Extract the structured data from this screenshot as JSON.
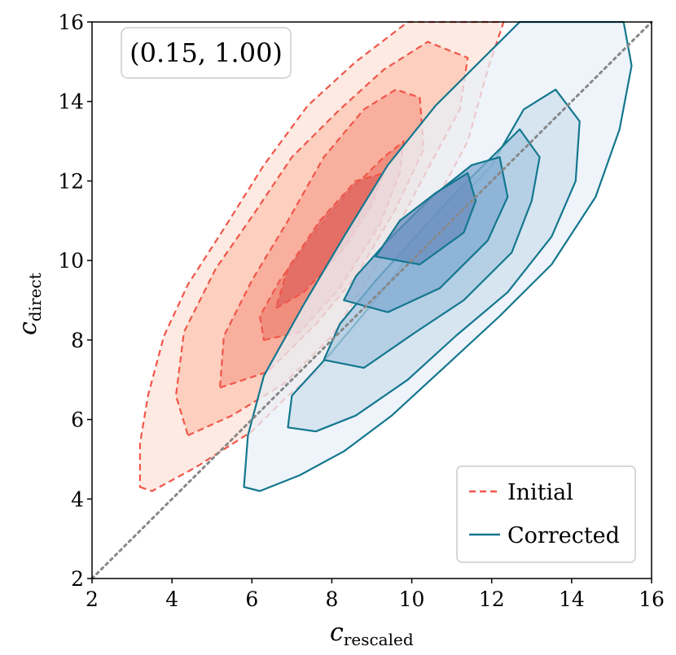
{
  "chart_data": {
    "type": "contour",
    "xlabel_main": "c",
    "xlabel_sub": "rescaled",
    "ylabel_main": "c",
    "ylabel_sub": "direct",
    "xlim": [
      2,
      16
    ],
    "ylim": [
      2,
      16
    ],
    "xticks": [
      2,
      4,
      6,
      8,
      10,
      12,
      14,
      16
    ],
    "yticks": [
      2,
      4,
      6,
      8,
      10,
      12,
      14,
      16
    ],
    "annotation": "(0.15, 1.00)",
    "reference_line": {
      "from": [
        2,
        2
      ],
      "to": [
        16,
        16
      ],
      "style": "dotted",
      "color": "#888888"
    },
    "series": [
      {
        "name": "Initial",
        "style": "dashed",
        "line_color": "#f0564a",
        "fill_colors": [
          "#fde6dd",
          "#fbcab8",
          "#f8a996",
          "#f08a7a",
          "#e06a62"
        ],
        "levels": [
          [
            [
              3.2,
              4.3
            ],
            [
              3.5,
              4.2
            ],
            [
              4.6,
              4.8
            ],
            [
              6.0,
              5.7
            ],
            [
              6.9,
              6.6
            ],
            [
              8.1,
              7.6
            ],
            [
              9.4,
              9.3
            ],
            [
              10.5,
              11.3
            ],
            [
              11.4,
              13.0
            ],
            [
              11.9,
              14.8
            ],
            [
              12.3,
              16.0
            ],
            [
              9.9,
              16.0
            ],
            [
              8.6,
              15.0
            ],
            [
              7.4,
              13.9
            ],
            [
              6.3,
              12.4
            ],
            [
              5.3,
              10.8
            ],
            [
              4.4,
              9.4
            ],
            [
              3.8,
              8.1
            ],
            [
              3.4,
              6.6
            ],
            [
              3.2,
              5.4
            ]
          ],
          [
            [
              4.4,
              5.6
            ],
            [
              5.5,
              6.1
            ],
            [
              6.8,
              6.9
            ],
            [
              8.0,
              8.1
            ],
            [
              9.2,
              10.0
            ],
            [
              10.4,
              12.3
            ],
            [
              11.2,
              13.8
            ],
            [
              11.4,
              15.1
            ],
            [
              10.4,
              15.5
            ],
            [
              9.3,
              14.8
            ],
            [
              8.2,
              13.8
            ],
            [
              7.0,
              12.6
            ],
            [
              6.0,
              11.1
            ],
            [
              5.1,
              9.8
            ],
            [
              4.3,
              8.2
            ],
            [
              4.1,
              6.6
            ]
          ],
          [
            [
              5.2,
              6.8
            ],
            [
              6.4,
              7.2
            ],
            [
              7.6,
              8.4
            ],
            [
              8.6,
              9.6
            ],
            [
              9.6,
              11.3
            ],
            [
              10.3,
              12.8
            ],
            [
              10.2,
              14.1
            ],
            [
              9.6,
              14.3
            ],
            [
              8.8,
              13.8
            ],
            [
              7.8,
              12.6
            ],
            [
              6.9,
              11.0
            ],
            [
              6.0,
              9.5
            ],
            [
              5.3,
              8.1
            ]
          ],
          [
            [
              6.3,
              8.0
            ],
            [
              7.2,
              8.2
            ],
            [
              8.2,
              9.3
            ],
            [
              9.2,
              10.9
            ],
            [
              9.7,
              12.2
            ],
            [
              9.8,
              13.0
            ],
            [
              9.3,
              12.6
            ],
            [
              8.4,
              11.7
            ],
            [
              7.5,
              10.6
            ],
            [
              6.7,
              9.5
            ],
            [
              6.2,
              8.6
            ]
          ],
          [
            [
              6.6,
              8.8
            ],
            [
              7.3,
              9.2
            ],
            [
              8.3,
              10.3
            ],
            [
              9.0,
              11.4
            ],
            [
              9.3,
              12.2
            ],
            [
              8.6,
              12.0
            ],
            [
              7.7,
              11.0
            ],
            [
              6.9,
              9.8
            ]
          ]
        ]
      },
      {
        "name": "Corrected",
        "style": "solid",
        "line_color": "#13778e",
        "fill_colors": [
          "#e8f0f8",
          "#cfe0ee",
          "#a9c8e0",
          "#82abd1",
          "#6a8dbf"
        ],
        "levels": [
          [
            [
              5.8,
              4.3
            ],
            [
              6.2,
              4.2
            ],
            [
              7.2,
              4.6
            ],
            [
              8.3,
              5.2
            ],
            [
              9.5,
              6.1
            ],
            [
              10.8,
              7.3
            ],
            [
              12.2,
              8.6
            ],
            [
              13.5,
              9.9
            ],
            [
              14.6,
              11.6
            ],
            [
              15.2,
              13.3
            ],
            [
              15.5,
              14.9
            ],
            [
              15.3,
              16.0
            ],
            [
              12.7,
              16.0
            ],
            [
              11.6,
              14.9
            ],
            [
              10.6,
              13.9
            ],
            [
              9.4,
              12.4
            ],
            [
              8.3,
              10.6
            ],
            [
              7.3,
              8.9
            ],
            [
              6.3,
              7.1
            ],
            [
              5.9,
              5.6
            ]
          ],
          [
            [
              6.9,
              5.8
            ],
            [
              7.6,
              5.7
            ],
            [
              8.6,
              6.1
            ],
            [
              9.9,
              7.0
            ],
            [
              11.1,
              8.1
            ],
            [
              12.4,
              9.2
            ],
            [
              13.5,
              10.6
            ],
            [
              14.1,
              12.0
            ],
            [
              14.2,
              13.5
            ],
            [
              13.6,
              14.3
            ],
            [
              12.8,
              13.8
            ],
            [
              12.0,
              12.4
            ],
            [
              11.1,
              11.4
            ],
            [
              10.0,
              10.2
            ],
            [
              9.0,
              8.9
            ],
            [
              8.0,
              7.7
            ],
            [
              7.0,
              6.6
            ]
          ],
          [
            [
              7.8,
              7.5
            ],
            [
              8.8,
              7.3
            ],
            [
              10.1,
              8.2
            ],
            [
              11.3,
              9.0
            ],
            [
              12.5,
              10.2
            ],
            [
              13.0,
              11.5
            ],
            [
              13.2,
              12.6
            ],
            [
              12.7,
              13.3
            ],
            [
              11.8,
              12.4
            ],
            [
              11.0,
              11.6
            ],
            [
              10.1,
              10.6
            ],
            [
              9.1,
              9.5
            ],
            [
              8.2,
              8.4
            ]
          ],
          [
            [
              8.3,
              9.0
            ],
            [
              9.4,
              8.7
            ],
            [
              10.7,
              9.3
            ],
            [
              11.9,
              10.5
            ],
            [
              12.4,
              11.6
            ],
            [
              12.2,
              12.6
            ],
            [
              11.5,
              12.4
            ],
            [
              10.5,
              11.6
            ],
            [
              9.4,
              10.5
            ],
            [
              8.6,
              9.6
            ]
          ],
          [
            [
              9.1,
              10.1
            ],
            [
              10.2,
              9.9
            ],
            [
              11.3,
              10.7
            ],
            [
              11.6,
              11.5
            ],
            [
              11.4,
              12.2
            ],
            [
              10.6,
              11.7
            ],
            [
              9.7,
              11.0
            ]
          ]
        ]
      }
    ]
  }
}
